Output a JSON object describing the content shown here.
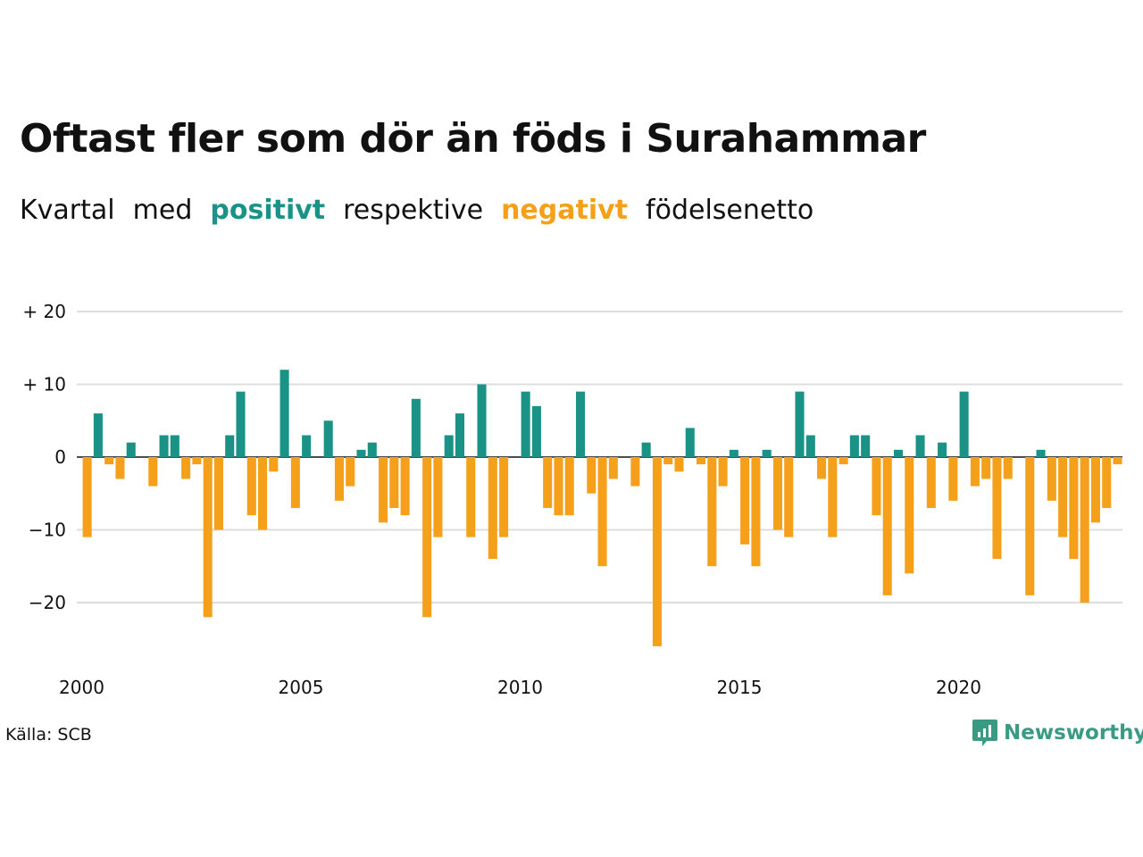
{
  "title": "Oftast fler som dör än föds i Surahammar",
  "subtitle": {
    "w1": "Kvartal",
    "w2": "med",
    "positive": "positivt",
    "w3": "respektive",
    "negative": "negativt",
    "w4": "födelsenetto"
  },
  "source": "Källa: SCB",
  "brand": "Newsworthy",
  "colors": {
    "positive": "#1a9386",
    "negative": "#f5a01a",
    "grid": "#dddddd",
    "brand": "#3a9b84"
  },
  "chart_data": {
    "type": "bar",
    "x_start": 2000,
    "quarters_per_year": 4,
    "values": [
      -11,
      6,
      -1,
      -3,
      2,
      0,
      -4,
      3,
      3,
      -3,
      -1,
      -22,
      -10,
      3,
      9,
      -8,
      -10,
      -2,
      12,
      -7,
      3,
      0,
      5,
      -6,
      -4,
      1,
      2,
      -9,
      -7,
      -8,
      8,
      -22,
      -11,
      3,
      6,
      -11,
      10,
      -14,
      -11,
      0,
      9,
      7,
      -7,
      -8,
      -8,
      9,
      -5,
      -15,
      -3,
      0,
      -4,
      2,
      -26,
      -1,
      -2,
      4,
      -1,
      -15,
      -4,
      1,
      -12,
      -15,
      1,
      -10,
      -11,
      9,
      3,
      -3,
      -11,
      -1,
      3,
      3,
      -8,
      -19,
      1,
      -16,
      3,
      -7,
      2,
      -6,
      9,
      -4,
      -3,
      -14,
      -3,
      0,
      -19,
      1,
      -6,
      -11,
      -14,
      -20,
      -9,
      -7,
      -1
    ],
    "yticks": [
      20,
      10,
      0,
      -10,
      -20
    ],
    "ytick_labels": [
      "+ 20",
      "+ 10",
      "0",
      "−10",
      "−20"
    ],
    "xticks": [
      "2000",
      "2005",
      "2010",
      "2015",
      "2020"
    ],
    "ylim": [
      -28,
      20
    ],
    "grid": true
  }
}
